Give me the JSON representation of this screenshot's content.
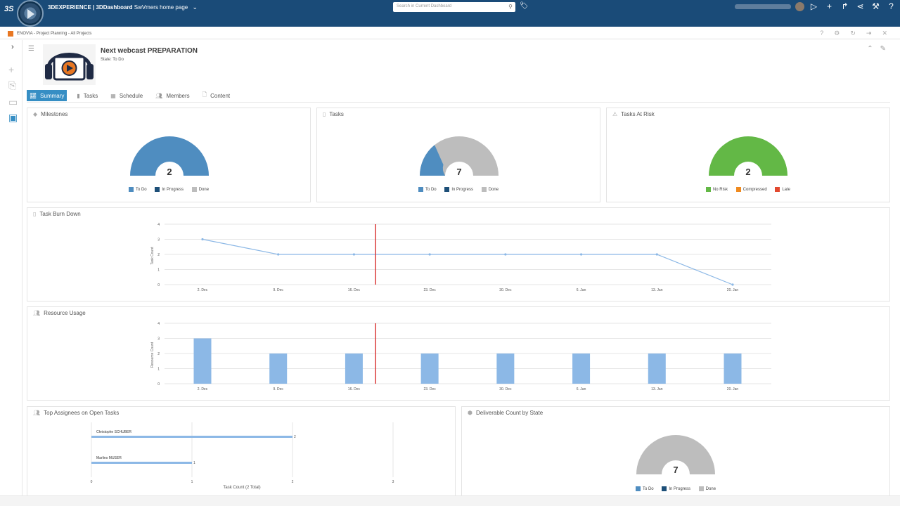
{
  "topbar": {
    "brand_bold": "3DEXPERIENCE | 3DDashboard",
    "brand_rest": "SwVmers home page",
    "search_placeholder": "Search in Current Dashboard",
    "icons": [
      "play-icon",
      "plus-icon",
      "share-icon",
      "network-icon",
      "tools-icon",
      "help-icon"
    ]
  },
  "app": {
    "title": "ENOVIA - Project Planning - All Projects",
    "tools": [
      "help-icon",
      "gear-icon",
      "refresh-icon",
      "signout-icon",
      "close-icon"
    ]
  },
  "project": {
    "title": "Next webcast PREPARATION",
    "state": "State: To Do"
  },
  "tabs": [
    {
      "label": "Summary",
      "icon": "chart-icon",
      "active": true
    },
    {
      "label": "Tasks",
      "icon": "trash-icon",
      "active": false
    },
    {
      "label": "Schedule",
      "icon": "calendar-icon",
      "active": false
    },
    {
      "label": "Members",
      "icon": "people-icon",
      "active": false
    },
    {
      "label": "Content",
      "icon": "document-icon",
      "active": false
    }
  ],
  "milestones": {
    "title": "Milestones",
    "count": "2",
    "legend": [
      "To Do",
      "In Progress",
      "Done"
    ],
    "colors": {
      "todo": "#4f8dc0",
      "inprogress": "#1d4f78",
      "done": "#bdbdbd"
    }
  },
  "tasks": {
    "title": "Tasks",
    "count": "7",
    "legend": [
      "To Do",
      "In Progress",
      "Done"
    ],
    "todo_fraction": 0.29
  },
  "risk": {
    "title": "Tasks At Risk",
    "count": "2",
    "legend": [
      "No Risk",
      "Compressed",
      "Late"
    ],
    "colors": {
      "norisk": "#63b846",
      "compressed": "#ef8a1f",
      "late": "#e2492f"
    }
  },
  "burndown": {
    "title": "Task Burn Down",
    "ylabel": "Task Count",
    "yticks": [
      "0",
      "1",
      "2",
      "3",
      "4"
    ],
    "xticks": [
      "2. Dec",
      "9. Dec",
      "16. Dec",
      "23. Dec",
      "30. Dec",
      "6. Jan",
      "13. Jan",
      "20. Jan"
    ]
  },
  "resource": {
    "title": "Resource Usage",
    "ylabel": "Resource Count",
    "yticks": [
      "0",
      "1",
      "2",
      "3",
      "4"
    ],
    "xticks": [
      "2. Dec",
      "9. Dec",
      "16. Dec",
      "23. Dec",
      "30. Dec",
      "6. Jan",
      "13. Jan",
      "20. Jan"
    ]
  },
  "assignees": {
    "title": "Top Assignees on Open Tasks",
    "xlabel": "Task Count (2 Total)",
    "xticks": [
      "0",
      "1",
      "2",
      "3"
    ],
    "rows": [
      {
        "name": "Christophe SCHUBER",
        "label": "2"
      },
      {
        "name": "Marlino MUSER",
        "label": "1"
      }
    ]
  },
  "deliverables": {
    "title": "Deliverable Count by State",
    "count": "7",
    "legend": [
      "To Do",
      "In Progress",
      "Done"
    ]
  },
  "chart_data": [
    {
      "type": "pie",
      "title": "Milestones",
      "categories": [
        "To Do",
        "In Progress",
        "Done"
      ],
      "values": [
        2,
        0,
        0
      ]
    },
    {
      "type": "pie",
      "title": "Tasks",
      "categories": [
        "To Do",
        "In Progress",
        "Done"
      ],
      "values": [
        2,
        0,
        5
      ]
    },
    {
      "type": "pie",
      "title": "Tasks At Risk",
      "categories": [
        "No Risk",
        "Compressed",
        "Late"
      ],
      "values": [
        2,
        0,
        0
      ]
    },
    {
      "type": "line",
      "title": "Task Burn Down",
      "x": [
        "2. Dec",
        "9. Dec",
        "16. Dec",
        "23. Dec",
        "30. Dec",
        "6. Jan",
        "13. Jan",
        "20. Jan"
      ],
      "values": [
        3,
        2,
        2,
        2,
        2,
        2,
        2,
        0
      ],
      "ylabel": "Task Count",
      "ylim": [
        0,
        4
      ],
      "today_marker": "18. Dec"
    },
    {
      "type": "bar",
      "title": "Resource Usage",
      "categories": [
        "2. Dec",
        "9. Dec",
        "16. Dec",
        "23. Dec",
        "30. Dec",
        "6. Jan",
        "13. Jan",
        "20. Jan"
      ],
      "values": [
        3,
        2,
        2,
        2,
        2,
        2,
        2,
        2
      ],
      "ylabel": "Resource Count",
      "ylim": [
        0,
        4
      ],
      "today_marker": "18. Dec"
    },
    {
      "type": "bar",
      "title": "Top Assignees on Open Tasks",
      "orientation": "horizontal",
      "categories": [
        "Christophe SCHUBER",
        "Marlino MUSER"
      ],
      "values": [
        2,
        1
      ],
      "xlabel": "Task Count (2 Total)",
      "xlim": [
        0,
        3
      ]
    },
    {
      "type": "pie",
      "title": "Deliverable Count by State",
      "categories": [
        "To Do",
        "In Progress",
        "Done"
      ],
      "values": [
        0,
        0,
        7
      ]
    }
  ]
}
